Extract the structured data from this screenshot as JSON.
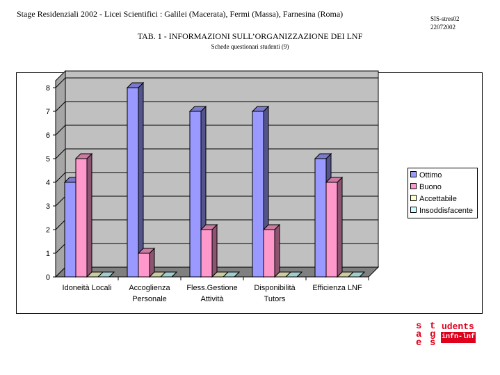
{
  "header": {
    "title": "Stage Residenziali  2002 - Licei Scientifici : Galilei  (Macerata), Fermi  (Massa), Farnesina  (Roma)",
    "code_line1": "SIS-stres02",
    "code_line2": "22072002"
  },
  "table_title": "TAB. 1 - INFORMAZIONI SULL’ORGANIZZAZIONE DEI LNF",
  "table_subtitle": "Schede questionari studenti  (9)",
  "chart_data": {
    "type": "bar",
    "categories": [
      [
        "Idoneità Locali"
      ],
      [
        "Accoglienza",
        "Personale"
      ],
      [
        "Fless.Gestione",
        "Attività"
      ],
      [
        "Disponibilità",
        "Tutors"
      ],
      [
        "Efficienza LNF"
      ]
    ],
    "series": [
      {
        "name": "Ottimo",
        "color": "#9999ff",
        "values": [
          4,
          8,
          7,
          7,
          5
        ]
      },
      {
        "name": "Buono",
        "color": "#ff99cc",
        "values": [
          5,
          1,
          2,
          2,
          4
        ]
      },
      {
        "name": "Accettabile",
        "color": "#ffffcc",
        "values": [
          0,
          0,
          0,
          0,
          0
        ]
      },
      {
        "name": "Insoddisfacente",
        "color": "#ccffff",
        "values": [
          0,
          0,
          0,
          0,
          0
        ]
      }
    ],
    "ylim": [
      0,
      8
    ],
    "yticks": [
      "0",
      "1",
      "2",
      "3",
      "4",
      "5",
      "6",
      "7",
      "8"
    ],
    "grid": true,
    "legend": "right",
    "wall_color": "#c0c0c0"
  },
  "logo": {
    "letters": [
      "s",
      "t",
      "a",
      "g",
      "e",
      "s"
    ],
    "udents": "udents",
    "box_text": "infn-lnf"
  }
}
